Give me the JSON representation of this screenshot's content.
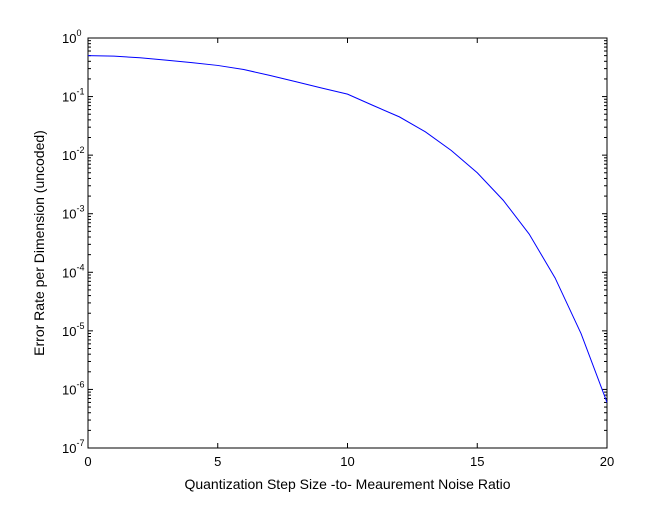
{
  "chart_data": {
    "type": "line",
    "title": "",
    "xlabel": "Quantization Step Size -to- Meaurement Noise Ratio",
    "ylabel": "Error Rate per Dimension (uncoded)",
    "xlim": [
      0,
      20
    ],
    "ylim": [
      1e-07,
      1
    ],
    "yscale": "log",
    "grid": false,
    "legend": "none",
    "x_ticks": [
      "0",
      "5",
      "10",
      "15",
      "20"
    ],
    "y_ticks": [
      {
        "base": "10",
        "exp": "-7"
      },
      {
        "base": "10",
        "exp": "-6"
      },
      {
        "base": "10",
        "exp": "-5"
      },
      {
        "base": "10",
        "exp": "-4"
      },
      {
        "base": "10",
        "exp": "-3"
      },
      {
        "base": "10",
        "exp": "-2"
      },
      {
        "base": "10",
        "exp": "-1"
      },
      {
        "base": "10",
        "exp": "0"
      }
    ],
    "series": [
      {
        "color": "#0000ff",
        "x": [
          0,
          1,
          2,
          3,
          4,
          5,
          6,
          7,
          8,
          9,
          10,
          11,
          12,
          13,
          14,
          15,
          16,
          17,
          18,
          19,
          20
        ],
        "y": [
          0.5,
          0.49,
          0.46,
          0.42,
          0.38,
          0.34,
          0.29,
          0.23,
          0.18,
          0.14,
          0.11,
          0.07,
          0.045,
          0.025,
          0.012,
          0.005,
          0.0017,
          0.00045,
          8e-05,
          9e-06,
          6e-07
        ]
      }
    ]
  }
}
